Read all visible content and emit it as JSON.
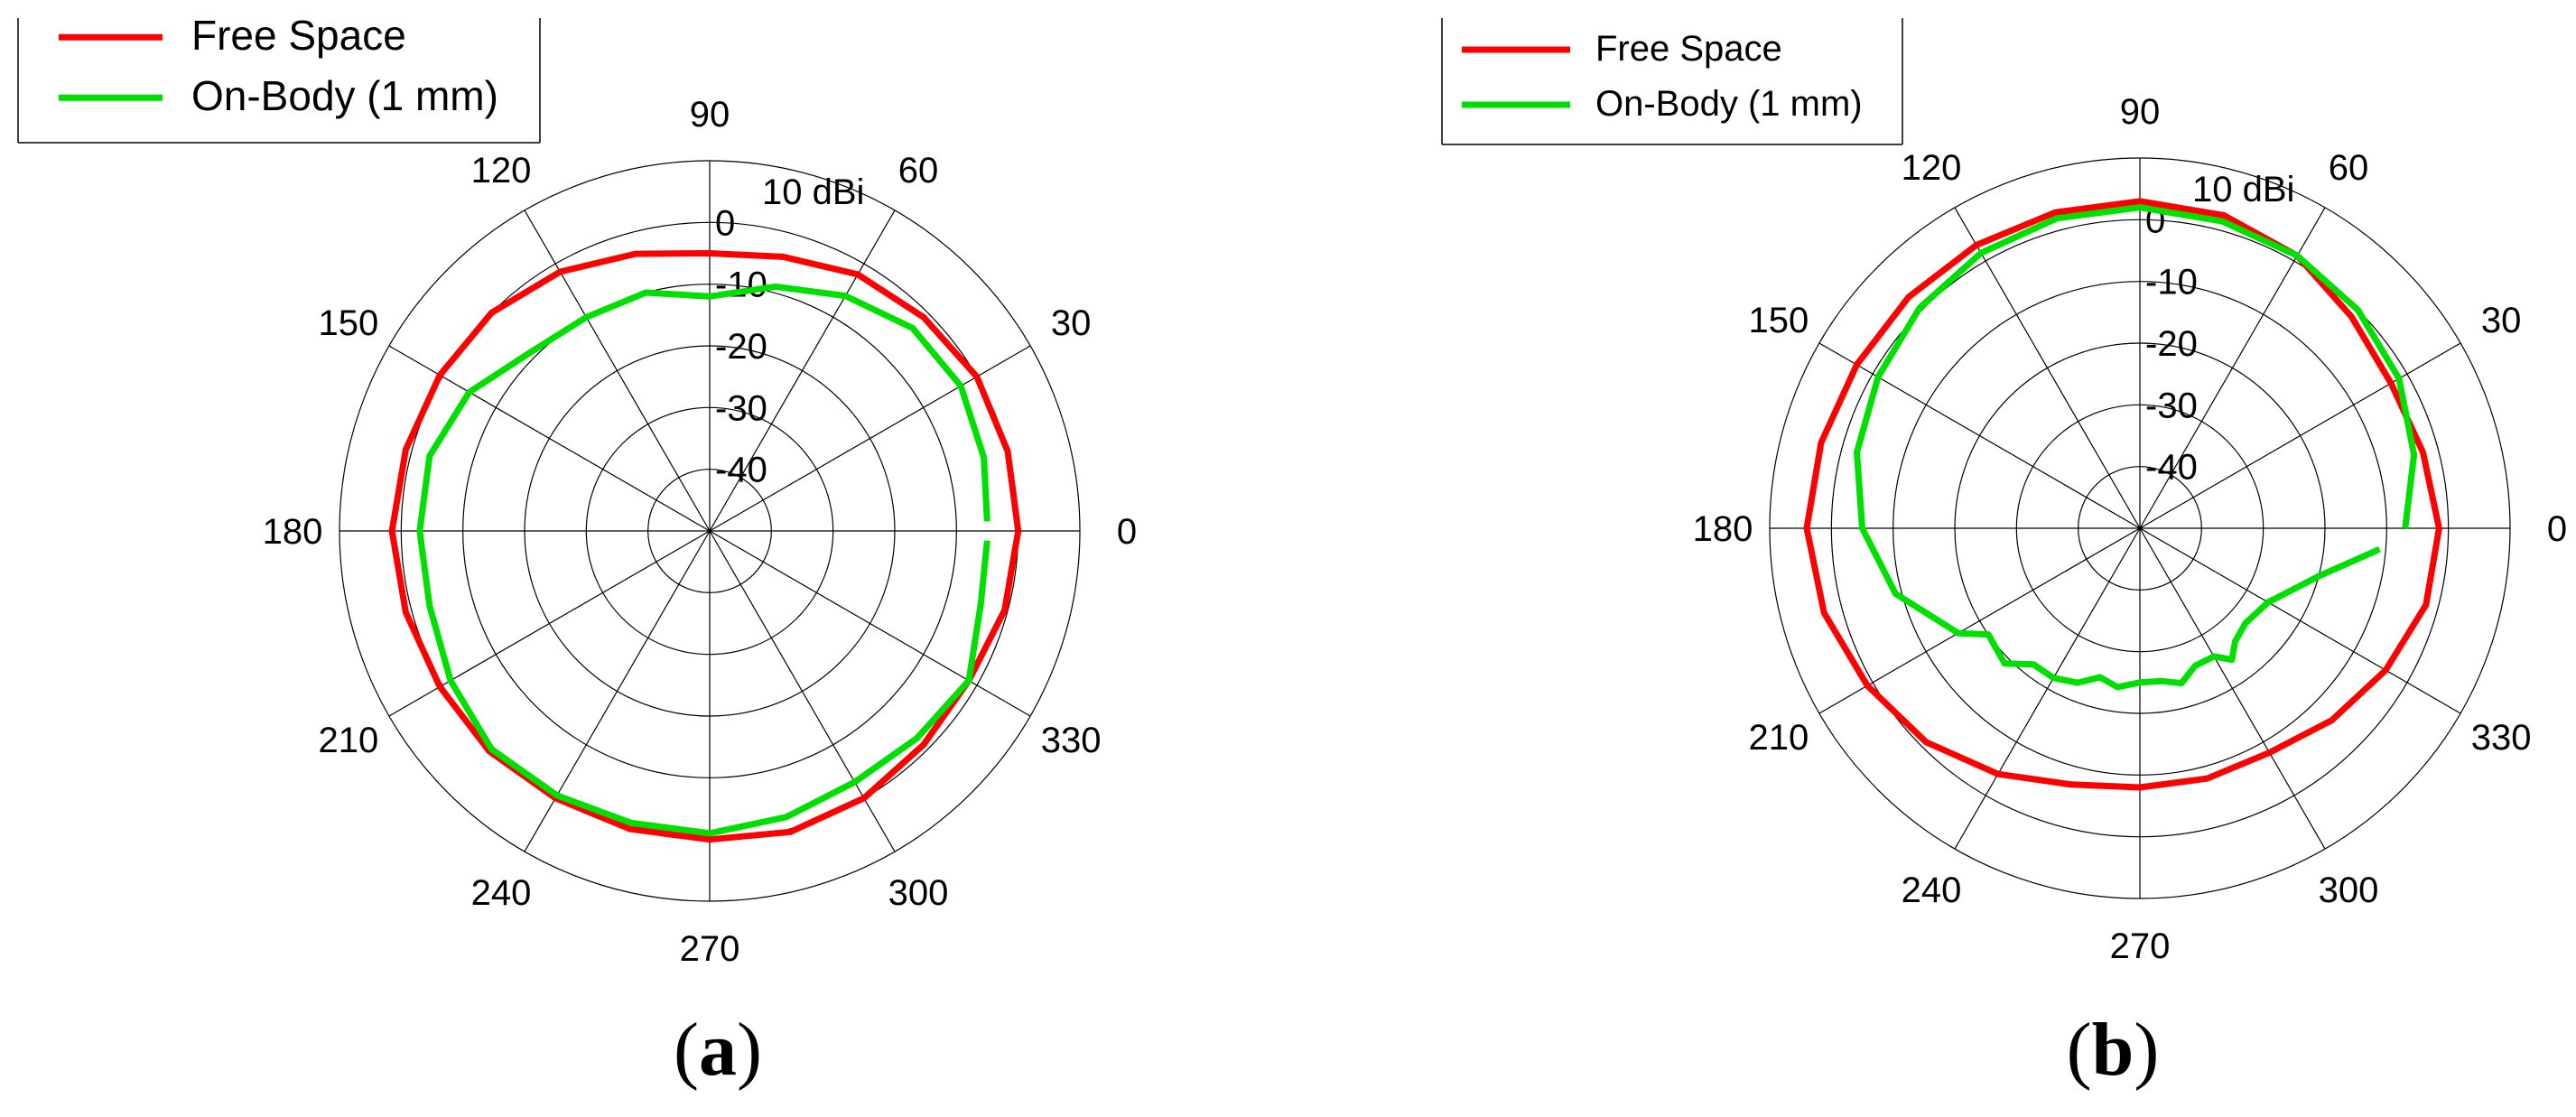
{
  "chart_data": [
    {
      "type": "polar-line",
      "panel_label": "a",
      "r_unit_label": "10 dBi",
      "r_ticks": [
        "0",
        "-10",
        "-20",
        "-30",
        "-40"
      ],
      "r_range": [
        -50,
        10
      ],
      "angle_ticks": [
        "0",
        "30",
        "60",
        "90",
        "120",
        "150",
        "180",
        "210",
        "240",
        "270",
        "300",
        "330"
      ],
      "grid": true,
      "legend_position": "top-left",
      "colors": {
        "Free Space": "#ff0000",
        "On-Body (1 mm)": "#00e000"
      },
      "series": [
        {
          "name": "Free Space",
          "angles": [
            0,
            15,
            30,
            45,
            60,
            75,
            90,
            105,
            120,
            135,
            150,
            165,
            180,
            195,
            210,
            225,
            240,
            255,
            270,
            285,
            300,
            315,
            330,
            345,
            360
          ],
          "values": [
            0,
            0,
            0,
            -1,
            -2,
            -4,
            -5,
            -3.5,
            -1.5,
            0,
            0.5,
            1,
            1.5,
            1,
            0.5,
            0.5,
            0,
            0,
            0,
            0.5,
            0,
            -1,
            -1.5,
            -0.5,
            0
          ]
        },
        {
          "name": "On-Body (1 mm)",
          "angles": [
            2,
            15,
            30,
            45,
            60,
            75,
            90,
            105,
            120,
            135,
            150,
            165,
            180,
            195,
            210,
            225,
            240,
            255,
            270,
            285,
            300,
            315,
            330,
            345,
            358
          ],
          "values": [
            -5,
            -4,
            -3,
            -3.5,
            -6,
            -9,
            -12,
            -10,
            -10,
            -9,
            -5,
            -3,
            -3,
            -3,
            -1.5,
            0,
            -0.5,
            -1,
            -1,
            -2,
            -3,
            -2.5,
            -1.5,
            -4.5,
            -5
          ]
        }
      ]
    },
    {
      "type": "polar-line",
      "panel_label": "b",
      "r_unit_label": "10 dBi",
      "r_ticks": [
        "0",
        "-10",
        "-20",
        "-30",
        "-40"
      ],
      "r_range": [
        -50,
        10
      ],
      "angle_ticks": [
        "0",
        "30",
        "60",
        "90",
        "120",
        "150",
        "180",
        "210",
        "240",
        "270",
        "300",
        "330"
      ],
      "grid": true,
      "legend_position": "top-left",
      "colors": {
        "Free Space": "#ff0000",
        "On-Body (1 mm)": "#00e000"
      },
      "series": [
        {
          "name": "Free Space",
          "angles": [
            0,
            15,
            30,
            45,
            60,
            75,
            90,
            105,
            120,
            135,
            150,
            165,
            180,
            195,
            210,
            225,
            240,
            255,
            270,
            285,
            300,
            315,
            330,
            345,
            360
          ],
          "values": [
            -1.5,
            -2.5,
            -3,
            -1.5,
            1,
            2.5,
            3,
            3,
            3,
            3,
            3,
            3.5,
            4,
            3,
            1,
            -1,
            -4,
            -7,
            -8,
            -8,
            -8,
            -6,
            -4,
            -2,
            -1.5
          ]
        },
        {
          "name": "On-Body (1 mm)",
          "angles": [
            0,
            15,
            30,
            45,
            60,
            75,
            90,
            105,
            120,
            135,
            150,
            165,
            180,
            195,
            210,
            215,
            225,
            232,
            240,
            248,
            255,
            262,
            270,
            278,
            285,
            292,
            300,
            305,
            310,
            318,
            330,
            345,
            355
          ],
          "values": [
            -7,
            -4,
            -1.5,
            0,
            1,
            1.5,
            2,
            2,
            1.5,
            0.5,
            -1,
            -2.5,
            -5,
            -9,
            -16,
            -20,
            -19,
            -22,
            -22,
            -23,
            -25,
            -24,
            -25,
            -25,
            -24,
            -26,
            -26,
            -24,
            -26,
            -27,
            -26,
            -20,
            -11
          ]
        }
      ]
    }
  ]
}
